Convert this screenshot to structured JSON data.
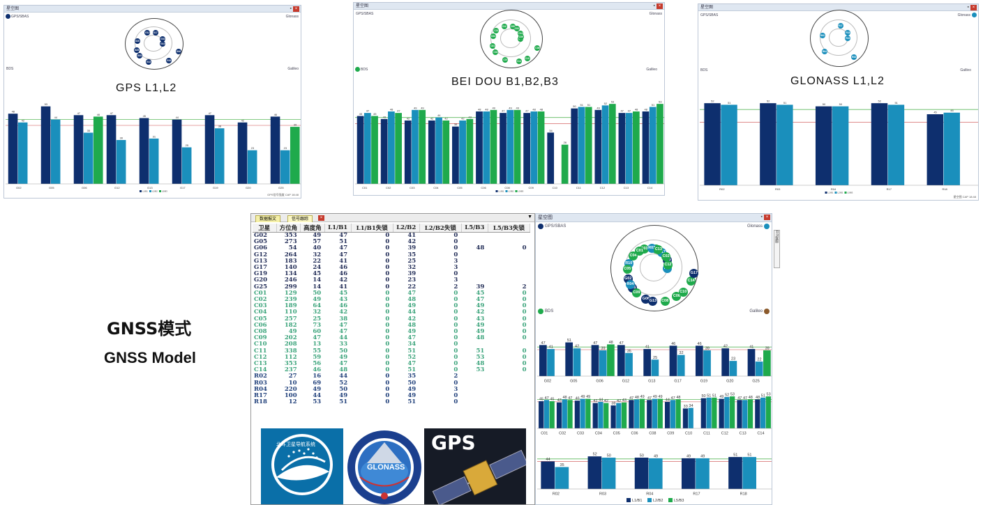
{
  "windows": [
    {
      "title": "星空图",
      "gps_label": "GPS/SBAS",
      "glonass_label": "Glonass",
      "bds_label": "BDS",
      "galileo_label": "Galileo",
      "caption": "GPS L1,L2",
      "status": "GPS信号强度  CAP 18:48",
      "sats": [
        "G10",
        "G05",
        "G17",
        "G19",
        "G20",
        "G02",
        "G13",
        "G12",
        "G06",
        "G25"
      ],
      "legend": [
        "L1/B1",
        "L2/B2",
        "L5/B3"
      ],
      "chart_data": {
        "type": "bar",
        "categories": [
          "G02",
          "G05",
          "G06",
          "G12",
          "G13",
          "G17",
          "G19",
          "G20",
          "G25"
        ],
        "series": [
          {
            "name": "L1/B1",
            "values": [
              48,
              53,
              47,
              47,
              45,
              44,
              47,
              42,
              46
            ]
          },
          {
            "name": "L2/B2",
            "values": [
              42,
              44,
              35,
              30,
              31,
              25,
              38,
              23,
              23
            ]
          },
          {
            "name": "L5/B3",
            "values": [
              null,
              null,
              46,
              null,
              null,
              null,
              null,
              null,
              39
            ]
          }
        ],
        "ylim": [
          0,
          60
        ]
      }
    },
    {
      "title": "星空图",
      "gps_label": "GPS/SBAS",
      "glonass_label": "Glonass",
      "bds_label": "BDS",
      "galileo_label": "Galileo",
      "caption": "BEI DOU  B1,B2,B3",
      "status": "",
      "sats": [
        "C08",
        "C02",
        "C05",
        "C10",
        "C04",
        "C13",
        "C07",
        "C12",
        "C06",
        "C01",
        "C03",
        "C14",
        "C11",
        "C09"
      ],
      "legend": [
        "L1/B1",
        "L2/B2",
        "L5/B3"
      ],
      "chart_data": {
        "type": "bar",
        "categories": [
          "C01",
          "C02",
          "C03",
          "C04",
          "C05",
          "C06",
          "C08",
          "C09",
          "C10",
          "C11",
          "C12",
          "C13",
          "C14"
        ],
        "series": [
          {
            "name": "L1/B1",
            "values": [
              45,
              43,
              42,
              42,
              38,
              48,
              47,
              47,
              34,
              50,
              49,
              47,
              48
            ]
          },
          {
            "name": "L2/B2",
            "values": [
              47,
              48,
              49,
              44,
              42,
              48,
              49,
              48,
              null,
              51,
              52,
              47,
              51
            ]
          },
          {
            "name": "L5/B3",
            "values": [
              45,
              47,
              49,
              42,
              43,
              49,
              49,
              48,
              26,
              51,
              53,
              48,
              53
            ]
          }
        ],
        "ylim": [
          0,
          60
        ]
      }
    },
    {
      "title": "星空图",
      "gps_label": "GPS/SBAS",
      "glonass_label": "Glonass",
      "bds_label": "BDS",
      "galileo_label": "Galileo",
      "caption": "GLONASS  L1,L2",
      "status": "星空图  CAP 18:48",
      "sats": [
        "R10",
        "R04",
        "R17",
        "R02",
        "R03",
        "R18"
      ],
      "legend": [
        "L1/B1",
        "L2/B2",
        "L5/B3"
      ],
      "chart_data": {
        "type": "bar",
        "categories": [
          "R02",
          "R03",
          "R04",
          "R17",
          "R18"
        ],
        "series": [
          {
            "name": "L1/B1",
            "values": [
              52,
              52,
              50,
              52,
              45
            ]
          },
          {
            "name": "L2/B2",
            "values": [
              51,
              51,
              50,
              51,
              46
            ]
          }
        ],
        "ylim": [
          0,
          60
        ]
      }
    }
  ],
  "table": {
    "tabs": [
      "数据报文",
      "信号跟踪"
    ],
    "headers": [
      "卫星",
      "方位角",
      "高度角",
      "L1/B1",
      "L1/B1失锁",
      "L2/B2",
      "L2/B2失锁",
      "L5/B3",
      "L5/B3失锁"
    ],
    "gps_color": "#1f2a55",
    "bds_color": "#3aa37a",
    "glo_color": "#1f3f7a",
    "rows": [
      [
        "G02",
        "353",
        "49",
        "47",
        "0",
        "41",
        "0",
        "",
        ""
      ],
      [
        "G05",
        "273",
        "57",
        "51",
        "0",
        "42",
        "0",
        "",
        ""
      ],
      [
        "G06",
        "54",
        "40",
        "47",
        "0",
        "39",
        "0",
        "48",
        "0"
      ],
      [
        "G12",
        "264",
        "32",
        "47",
        "0",
        "35",
        "0",
        "",
        ""
      ],
      [
        "G13",
        "183",
        "22",
        "41",
        "0",
        "25",
        "3",
        "",
        ""
      ],
      [
        "G17",
        "140",
        "24",
        "46",
        "0",
        "32",
        "3",
        "",
        ""
      ],
      [
        "G19",
        "134",
        "45",
        "46",
        "0",
        "39",
        "0",
        "",
        ""
      ],
      [
        "G20",
        "246",
        "14",
        "42",
        "0",
        "23",
        "3",
        "",
        ""
      ],
      [
        "G25",
        "299",
        "14",
        "41",
        "0",
        "22",
        "2",
        "39",
        "2"
      ],
      [
        "C01",
        "129",
        "50",
        "45",
        "0",
        "47",
        "0",
        "45",
        "0"
      ],
      [
        "C02",
        "239",
        "49",
        "43",
        "0",
        "48",
        "0",
        "47",
        "0"
      ],
      [
        "C03",
        "189",
        "64",
        "46",
        "0",
        "49",
        "0",
        "49",
        "0"
      ],
      [
        "C04",
        "110",
        "32",
        "42",
        "0",
        "44",
        "0",
        "42",
        "0"
      ],
      [
        "C05",
        "257",
        "25",
        "38",
        "0",
        "42",
        "0",
        "43",
        "0"
      ],
      [
        "C06",
        "182",
        "73",
        "47",
        "0",
        "48",
        "0",
        "49",
        "0"
      ],
      [
        "C08",
        "49",
        "60",
        "47",
        "0",
        "49",
        "0",
        "49",
        "0"
      ],
      [
        "C09",
        "202",
        "47",
        "44",
        "0",
        "47",
        "0",
        "48",
        "0"
      ],
      [
        "C10",
        "208",
        "13",
        "33",
        "0",
        "34",
        "0",
        "",
        ""
      ],
      [
        "C11",
        "338",
        "55",
        "50",
        "0",
        "51",
        "0",
        "51",
        "0"
      ],
      [
        "C12",
        "112",
        "59",
        "49",
        "0",
        "52",
        "0",
        "53",
        "0"
      ],
      [
        "C13",
        "353",
        "56",
        "47",
        "0",
        "47",
        "0",
        "48",
        "0"
      ],
      [
        "C14",
        "237",
        "46",
        "48",
        "0",
        "51",
        "0",
        "53",
        "0"
      ],
      [
        "R02",
        "27",
        "16",
        "44",
        "0",
        "35",
        "2",
        "",
        ""
      ],
      [
        "R03",
        "10",
        "69",
        "52",
        "0",
        "50",
        "0",
        "",
        ""
      ],
      [
        "R04",
        "220",
        "49",
        "50",
        "0",
        "49",
        "3",
        "",
        ""
      ],
      [
        "R17",
        "100",
        "44",
        "49",
        "0",
        "49",
        "0",
        "",
        ""
      ],
      [
        "R18",
        "12",
        "53",
        "51",
        "0",
        "51",
        "0",
        "",
        ""
      ]
    ]
  },
  "logos": {
    "beidou_text": "北斗卫星导航系统",
    "glonass_text": "GLONASS",
    "gps_text": "GPS"
  },
  "heading": {
    "cn": "GNSS模式",
    "en": "GNSS Model"
  },
  "bigwin": {
    "title": "星空图",
    "gps_label": "GPS/SBAS",
    "glonass_label": "Glonass",
    "bds_label": "BDS",
    "galileo_label": "Galileo",
    "side_tab": "FIT视图",
    "sats": [
      "R02",
      "G25",
      "C11",
      "C06",
      "R10",
      "G05",
      "G06",
      "C03",
      "C14",
      "G02",
      "R17",
      "C08",
      "C04",
      "C12",
      "C09",
      "R03",
      "C10",
      "C05",
      "C02",
      "G13",
      "C01",
      "G17",
      "R04",
      "C13"
    ],
    "legend": [
      "L1/B1",
      "L2/B2",
      "L5/B3"
    ],
    "gps_chart": {
      "type": "bar",
      "categories": [
        "G02",
        "G05",
        "G06",
        "G12",
        "G13",
        "G17",
        "G19",
        "G20",
        "G25"
      ],
      "series": [
        {
          "name": "L1/B1",
          "values": [
            47,
            51,
            47,
            47,
            41,
            46,
            46,
            42,
            41
          ]
        },
        {
          "name": "L2/B2",
          "values": [
            41,
            42,
            39,
            35,
            25,
            32,
            39,
            23,
            22
          ]
        },
        {
          "name": "L5/B3",
          "values": [
            null,
            null,
            48,
            null,
            null,
            null,
            null,
            null,
            39
          ]
        }
      ],
      "ylim": [
        0,
        60
      ]
    },
    "bds_chart": {
      "type": "bar",
      "categories": [
        "C01",
        "C02",
        "C03",
        "C04",
        "C05",
        "C06",
        "C08",
        "C09",
        "C10",
        "C11",
        "C12",
        "C13",
        "C14"
      ],
      "series": [
        {
          "name": "L1/B1",
          "values": [
            45,
            43,
            46,
            42,
            38,
            47,
            47,
            44,
            33,
            50,
            49,
            47,
            48
          ]
        },
        {
          "name": "L2/B2",
          "values": [
            47,
            48,
            49,
            44,
            42,
            48,
            49,
            47,
            34,
            51,
            52,
            47,
            51
          ]
        },
        {
          "name": "L5/B3",
          "values": [
            45,
            47,
            49,
            42,
            43,
            49,
            49,
            48,
            null,
            51,
            53,
            48,
            53
          ]
        }
      ],
      "ylim": [
        0,
        60
      ]
    },
    "glo_chart": {
      "type": "bar",
      "categories": [
        "R02",
        "R03",
        "R04",
        "R17",
        "R18"
      ],
      "series": [
        {
          "name": "L1/B1",
          "values": [
            44,
            52,
            50,
            49,
            51
          ]
        },
        {
          "name": "L2/B2",
          "values": [
            35,
            50,
            49,
            49,
            51
          ]
        }
      ],
      "ylim": [
        0,
        60
      ]
    }
  },
  "colors": {
    "l1": "#0e2f6e",
    "l2": "#1a8fbc",
    "l3": "#1faa4c",
    "green_line": "#5ab85a",
    "red_line": "#c44"
  }
}
